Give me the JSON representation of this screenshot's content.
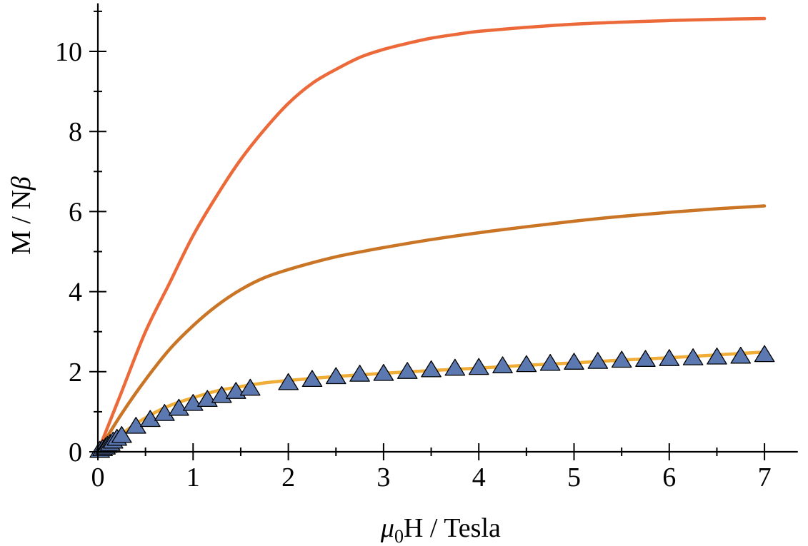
{
  "chart_data": {
    "type": "line",
    "title": "",
    "xlabel_parts": {
      "mu": "μ",
      "sub": "0",
      "rest": "H / Tesla"
    },
    "ylabel_parts": {
      "main": "M / N",
      "beta": "β"
    },
    "xlim": [
      0,
      7.35
    ],
    "ylim": [
      0,
      11.2
    ],
    "x_ticks": [
      0,
      1,
      2,
      3,
      4,
      5,
      6,
      7
    ],
    "x_tick_labels": [
      "0",
      "1",
      "2",
      "3",
      "4",
      "5",
      "6",
      "7"
    ],
    "y_ticks": [
      0,
      2,
      4,
      6,
      8,
      10
    ],
    "y_tick_labels": [
      "0",
      "2",
      "4",
      "6",
      "8",
      "10"
    ],
    "grid": false,
    "series": [
      {
        "color": "#ec6a3a",
        "style": "line",
        "x": [
          0,
          0.25,
          0.5,
          0.75,
          1,
          1.25,
          1.5,
          1.75,
          2,
          2.25,
          2.5,
          2.75,
          3,
          3.25,
          3.5,
          3.75,
          4,
          4.5,
          5,
          5.5,
          6,
          6.5,
          7
        ],
        "y": [
          0,
          1.5,
          3.0,
          4.2,
          5.4,
          6.4,
          7.3,
          8.05,
          8.7,
          9.2,
          9.55,
          9.85,
          10.05,
          10.2,
          10.33,
          10.42,
          10.5,
          10.6,
          10.68,
          10.73,
          10.77,
          10.8,
          10.82
        ]
      },
      {
        "color": "#c97525",
        "style": "line",
        "x": [
          0,
          0.25,
          0.5,
          0.75,
          1,
          1.25,
          1.5,
          1.75,
          2,
          2.25,
          2.5,
          2.75,
          3,
          3.5,
          4,
          4.5,
          5,
          5.5,
          6,
          6.5,
          7
        ],
        "y": [
          0,
          0.95,
          1.8,
          2.55,
          3.15,
          3.65,
          4.05,
          4.35,
          4.55,
          4.72,
          4.87,
          4.99,
          5.1,
          5.3,
          5.47,
          5.62,
          5.76,
          5.88,
          5.98,
          6.07,
          6.14
        ]
      },
      {
        "color": "#f0ad38",
        "style": "line",
        "x": [
          0,
          0.25,
          0.5,
          0.75,
          1,
          1.25,
          1.5,
          1.75,
          2,
          2.5,
          3,
          3.5,
          4,
          4.5,
          5,
          5.5,
          6,
          6.5,
          7
        ],
        "y": [
          0,
          0.45,
          0.85,
          1.15,
          1.35,
          1.52,
          1.63,
          1.72,
          1.78,
          1.88,
          1.96,
          2.03,
          2.09,
          2.16,
          2.22,
          2.29,
          2.35,
          2.42,
          2.49
        ]
      },
      {
        "color": "#5b79b0",
        "stroke": "#000000",
        "style": "marker-triangle",
        "x": [
          0.02,
          0.05,
          0.08,
          0.1,
          0.13,
          0.16,
          0.2,
          0.25,
          0.4,
          0.55,
          0.7,
          0.85,
          1.0,
          1.15,
          1.3,
          1.45,
          1.6,
          2.0,
          2.25,
          2.5,
          2.75,
          3.0,
          3.25,
          3.5,
          3.75,
          4.0,
          4.25,
          4.5,
          4.75,
          5.0,
          5.25,
          5.5,
          5.75,
          6.0,
          6.25,
          6.5,
          6.75,
          7.0
        ],
        "y": [
          0.03,
          0.07,
          0.11,
          0.15,
          0.2,
          0.26,
          0.33,
          0.4,
          0.63,
          0.8,
          0.95,
          1.08,
          1.2,
          1.3,
          1.4,
          1.5,
          1.58,
          1.72,
          1.8,
          1.87,
          1.93,
          1.95,
          2.0,
          2.04,
          2.08,
          2.1,
          2.14,
          2.17,
          2.2,
          2.23,
          2.25,
          2.28,
          2.3,
          2.32,
          2.34,
          2.36,
          2.38,
          2.42
        ]
      }
    ]
  }
}
